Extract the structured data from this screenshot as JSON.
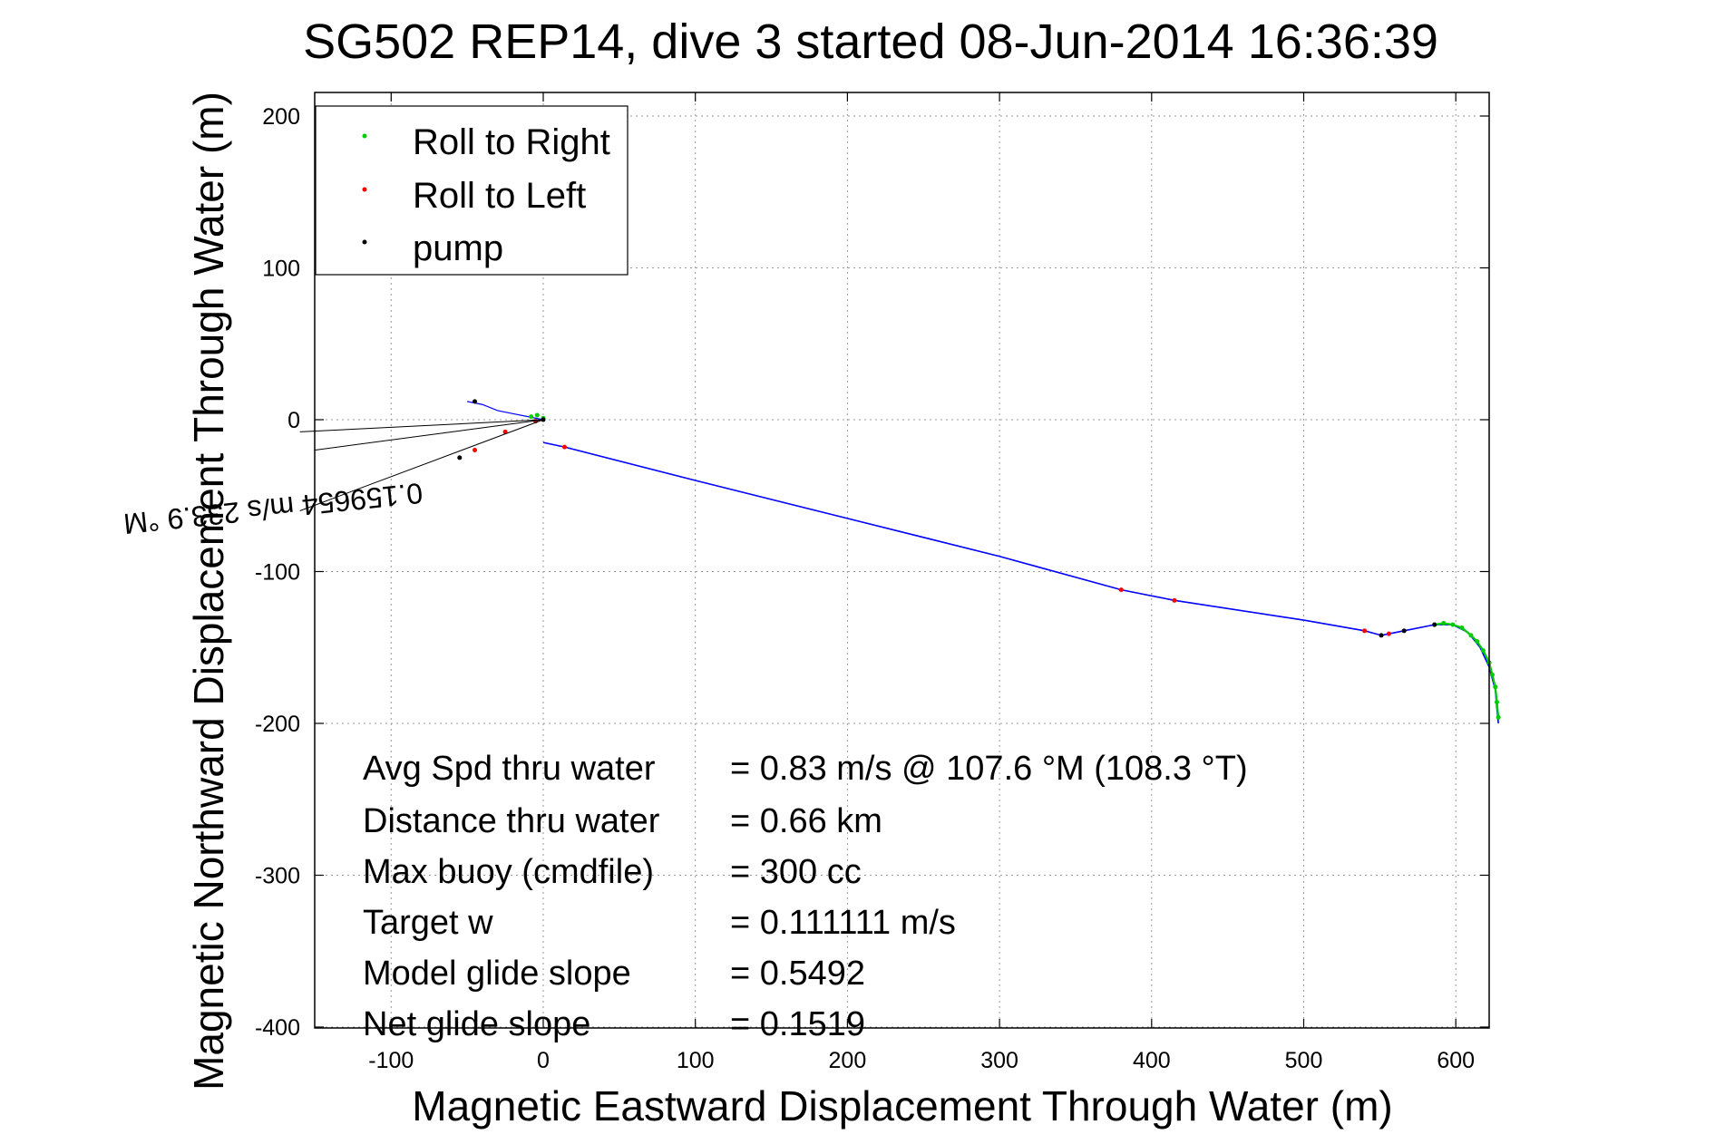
{
  "chart_data": {
    "type": "line",
    "title": "SG502 REP14, dive 3 started 08-Jun-2014 16:36:39",
    "xlabel": "Magnetic Eastward Displacement Through Water (m)",
    "ylabel": "Magnetic Northward Displacement Through Water (m)",
    "xlim": [
      -155,
      630
    ],
    "ylim": [
      -405,
      215
    ],
    "xticks": [
      -100,
      0,
      100,
      200,
      300,
      400,
      500,
      600
    ],
    "yticks": [
      -400,
      -300,
      -200,
      -100,
      0,
      100,
      200
    ],
    "xtick_labels": [
      "-100",
      "0",
      "100",
      "200",
      "300",
      "400",
      "500",
      "600"
    ],
    "ytick_labels": [
      "-400",
      "-300",
      "-200",
      "-100",
      "0",
      "100",
      "200"
    ],
    "grid": true,
    "legend_position": "top-left",
    "legend": [
      {
        "label": "Roll to Right",
        "color": "#00cc00"
      },
      {
        "label": "Roll to Left",
        "color": "#ff0000"
      },
      {
        "label": "pump",
        "color": "#000000"
      }
    ],
    "series": [
      {
        "name": "track",
        "color": "#0000ff",
        "x": [
          0,
          14,
          100,
          200,
          300,
          380,
          415,
          500,
          540,
          551,
          556,
          566,
          586,
          598,
          608,
          616,
          622,
          626,
          627,
          628
        ],
        "y": [
          -15,
          -18,
          -40,
          -65,
          -90,
          -112,
          -119,
          -132,
          -139,
          -142,
          -141,
          -139,
          -135,
          -135,
          -140,
          -150,
          -163,
          -178,
          -190,
          -200
        ]
      },
      {
        "name": "Roll to Right",
        "color": "#00cc00",
        "x": [
          -8,
          -4,
          0,
          586,
          592,
          598,
          604,
          610,
          614,
          618,
          622,
          624,
          626,
          627,
          628
        ],
        "y": [
          2,
          3,
          1,
          -135,
          -134,
          -135,
          -137,
          -142,
          -146,
          -152,
          -160,
          -168,
          -176,
          -186,
          -196
        ]
      },
      {
        "name": "Roll to Left",
        "color": "#ff0000",
        "x": [
          14,
          380,
          415,
          540,
          556,
          -5,
          -25,
          -45
        ],
        "y": [
          -18,
          -112,
          -119,
          -139,
          -141,
          -1,
          -8,
          -20
        ]
      },
      {
        "name": "pump",
        "color": "#000000",
        "x": [
          0,
          551,
          566,
          586,
          -45,
          -55
        ],
        "y": [
          0,
          -142,
          -139,
          -135,
          12,
          -25
        ]
      }
    ],
    "current_arrow_labels": [
      "0.159654 m/s 233.9 °M"
    ],
    "annotations": [
      {
        "label": "Avg Spd thru water",
        "value": "=  0.83 m/s @ 107.6 °M (108.3 °T)"
      },
      {
        "label": "Distance thru water",
        "value": "=  0.66 km"
      },
      {
        "label": "Max buoy (cmdfile)",
        "value": "= 300 cc"
      },
      {
        "label": "Target w",
        "value": "= 0.111111 m/s"
      },
      {
        "label": "Model glide slope",
        "value": "= 0.5492"
      },
      {
        "label": "Net glide slope",
        "value": "= 0.1519"
      }
    ]
  }
}
